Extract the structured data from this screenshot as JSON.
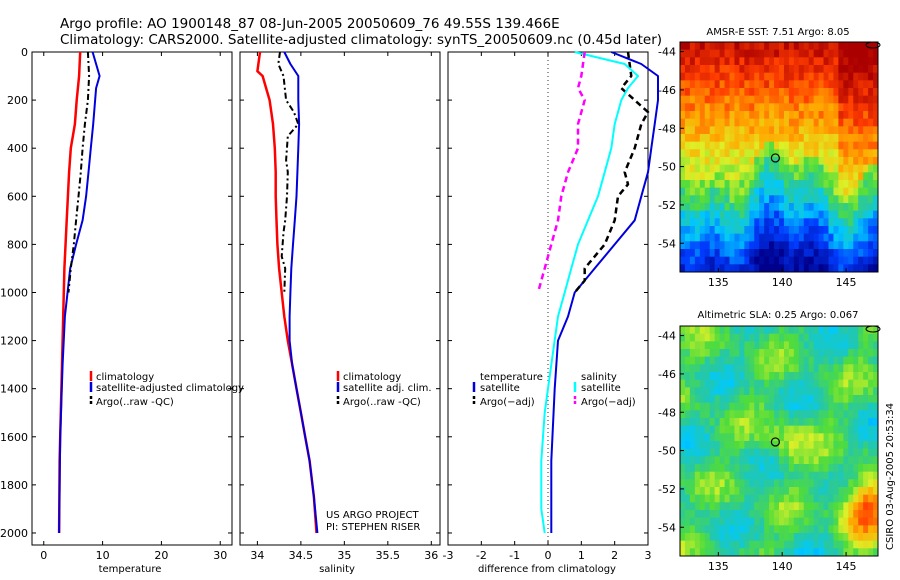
{
  "title": {
    "line1": "Argo profile: AO 1900148_87 08-Jun-2005 20050609_76 49.55S 139.466E",
    "line2": "Climatology: CARS2000. Satellite-adjusted climatology: synTS_20050609.nc (0.45d later)"
  },
  "colors": {
    "climatology": "#ff0000",
    "satellite": "#0000dd",
    "argo": "#000000",
    "temp_diff_sat": "#00ffff",
    "sal_diff_argo": "#ff00ff"
  },
  "depth_ticks": [
    "0",
    "200",
    "400",
    "600",
    "800",
    "1000",
    "1200",
    "1400",
    "1600",
    "1800",
    "2000"
  ],
  "panels": {
    "temperature": {
      "xlabel": "temperature",
      "xticks": [
        "0",
        "10",
        "20",
        "30"
      ],
      "legend": [
        "climatology",
        "satellite-adjusted climatology",
        "Argo(..raw -QC)"
      ]
    },
    "salinity": {
      "xlabel": "salinity",
      "xticks": [
        "34",
        "34.5",
        "35",
        "35.5",
        "36"
      ],
      "legend": [
        "climatology",
        "satellite adj. clim.",
        "Argo(..raw -QC)"
      ],
      "project": "US ARGO PROJECT",
      "pi": "PI: STEPHEN RISER"
    },
    "difference": {
      "xlabel": "difference from climatology",
      "xticks": [
        "-3",
        "-2",
        "-1",
        "0",
        "1",
        "2",
        "3"
      ],
      "legend_left_title": "temperature",
      "legend_left": [
        "satellite",
        "Argo(−adj)"
      ],
      "legend_right_title": "salinity",
      "legend_right": [
        "satellite",
        "Argo(−adj)"
      ]
    }
  },
  "maps": {
    "sst": {
      "title": "AMSR-E SST: 7.51 Argo: 8.05"
    },
    "sla": {
      "title": "Altimetric SLA: 0.25 Argo: 0.067"
    },
    "xticks": [
      "135",
      "140",
      "145"
    ],
    "yticks": [
      "-44",
      "-46",
      "-48",
      "-50",
      "-52",
      "-54"
    ]
  },
  "credit": "CSIRO 03-Aug-2005 20:53:34",
  "chart_data": [
    {
      "type": "line",
      "title": "",
      "xlabel": "temperature",
      "ylabel": "",
      "xlim": [
        -2,
        32
      ],
      "ylim": [
        2050,
        0
      ],
      "series": [
        {
          "name": "climatology",
          "x": [
            6.2,
            6.0,
            5.6,
            5.3,
            4.6,
            4.3,
            3.9,
            3.5,
            3.3,
            3.1,
            2.9,
            2.7,
            2.6
          ],
          "y": [
            0,
            100,
            200,
            300,
            400,
            500,
            700,
            900,
            1100,
            1300,
            1500,
            1700,
            2000
          ]
        },
        {
          "name": "satellite-adjusted climatology",
          "x": [
            8.3,
            9.5,
            8.9,
            8.4,
            8.0,
            7.6,
            7.2,
            6.6,
            5.5,
            4.5,
            3.6,
            3.2,
            2.8,
            2.6
          ],
          "y": [
            0,
            100,
            150,
            300,
            400,
            500,
            600,
            700,
            800,
            900,
            1100,
            1300,
            1600,
            2000
          ]
        },
        {
          "name": "Argo(..raw -QC)",
          "x": [
            7.5,
            7.7,
            7.5,
            7.0,
            6.6,
            6.3,
            5.9,
            5.5,
            5.1,
            4.6,
            4.2
          ],
          "y": [
            0,
            100,
            200,
            300,
            400,
            500,
            600,
            700,
            800,
            900,
            1000
          ]
        }
      ]
    },
    {
      "type": "line",
      "title": "",
      "xlabel": "salinity",
      "ylabel": "",
      "xlim": [
        33.8,
        36.1
      ],
      "ylim": [
        2050,
        0
      ],
      "series": [
        {
          "name": "climatology",
          "x": [
            34.03,
            34.0,
            34.06,
            34.1,
            34.14,
            34.18,
            34.2,
            34.21,
            34.21,
            34.22,
            34.23,
            34.25,
            34.28,
            34.31,
            34.35,
            34.4,
            34.45,
            34.5,
            34.55,
            34.6,
            34.65,
            34.68
          ],
          "y": [
            0,
            80,
            100,
            150,
            200,
            300,
            400,
            500,
            600,
            700,
            800,
            900,
            1000,
            1100,
            1200,
            1300,
            1400,
            1500,
            1600,
            1700,
            1850,
            2000
          ]
        },
        {
          "name": "satellite adj. clim.",
          "x": [
            34.31,
            34.38,
            34.47,
            34.47,
            34.48,
            34.47,
            34.46,
            34.45,
            34.43,
            34.41,
            34.39,
            34.38,
            34.37,
            34.37,
            34.4,
            34.45,
            34.5,
            34.55,
            34.6,
            34.65,
            34.69
          ],
          "y": [
            0,
            50,
            100,
            200,
            300,
            400,
            500,
            600,
            700,
            800,
            900,
            1000,
            1100,
            1200,
            1300,
            1400,
            1500,
            1600,
            1700,
            1850,
            2000
          ]
        },
        {
          "name": "Argo(..raw -QC)",
          "x": [
            34.26,
            34.24,
            34.3,
            34.33,
            34.42,
            34.47,
            34.35,
            34.33,
            34.35,
            34.34,
            34.32,
            34.3,
            34.29,
            34.28,
            34.32,
            34.31
          ],
          "y": [
            0,
            50,
            100,
            200,
            250,
            300,
            350,
            450,
            500,
            600,
            700,
            750,
            800,
            850,
            900,
            1000
          ]
        }
      ]
    },
    {
      "type": "line",
      "title": "",
      "xlabel": "difference from climatology",
      "ylabel": "",
      "xlim": [
        -3,
        3
      ],
      "ylim": [
        2050,
        0
      ],
      "series": [
        {
          "name": "temperature satellite",
          "x": [
            1.9,
            2.8,
            3.3,
            3.3,
            3.2,
            3.1,
            3.0,
            2.8,
            2.6,
            2.0,
            1.4,
            1.1,
            0.8,
            0.6,
            0.3,
            0.2,
            0.1,
            0.1
          ],
          "y": [
            0,
            50,
            100,
            200,
            300,
            400,
            500,
            600,
            700,
            800,
            900,
            950,
            1000,
            1100,
            1200,
            1400,
            1700,
            2000
          ]
        },
        {
          "name": "temperature Argo(−adj)",
          "x": [
            2.4,
            2.5,
            2.2,
            3.0,
            2.8,
            2.6,
            2.3,
            2.4,
            2.1,
            2.0,
            1.7,
            1.4,
            1.1,
            1.1,
            0.8
          ],
          "y": [
            0,
            100,
            150,
            250,
            300,
            400,
            500,
            550,
            600,
            700,
            800,
            850,
            900,
            950,
            1000
          ]
        },
        {
          "name": "salinity satellite",
          "x": [
            0.8,
            2.3,
            2.7,
            2.4,
            2.2,
            2.0,
            1.9,
            1.7,
            1.5,
            1.2,
            0.9,
            0.7,
            0.5,
            0.3,
            0.1,
            -0.1,
            -0.2,
            -0.2,
            -0.1
          ],
          "y": [
            0,
            50,
            100,
            150,
            200,
            300,
            400,
            500,
            600,
            700,
            800,
            900,
            1000,
            1100,
            1300,
            1500,
            1700,
            1900,
            2000
          ]
        },
        {
          "name": "salinity Argo(−adj)",
          "x": [
            1.1,
            1.0,
            0.9,
            1.1,
            0.9,
            0.9,
            0.6,
            0.4,
            0.3,
            0.1,
            0.0,
            -0.1,
            -0.3
          ],
          "y": [
            0,
            100,
            150,
            200,
            300,
            400,
            500,
            600,
            700,
            800,
            850,
            900,
            1000
          ]
        }
      ]
    },
    {
      "type": "heatmap",
      "title": "AMSR-E SST: 7.51 Argo: 8.05",
      "xlabel": "",
      "ylabel": "",
      "xlim": [
        132,
        147.5
      ],
      "ylim": [
        -55.5,
        -43.5
      ],
      "argo_position": [
        139.466,
        -49.55
      ]
    },
    {
      "type": "heatmap",
      "title": "Altimetric SLA: 0.25 Argo: 0.067",
      "xlabel": "",
      "ylabel": "",
      "xlim": [
        132,
        147.5
      ],
      "ylim": [
        -55.5,
        -43.5
      ],
      "argo_position": [
        139.466,
        -49.55
      ]
    }
  ]
}
